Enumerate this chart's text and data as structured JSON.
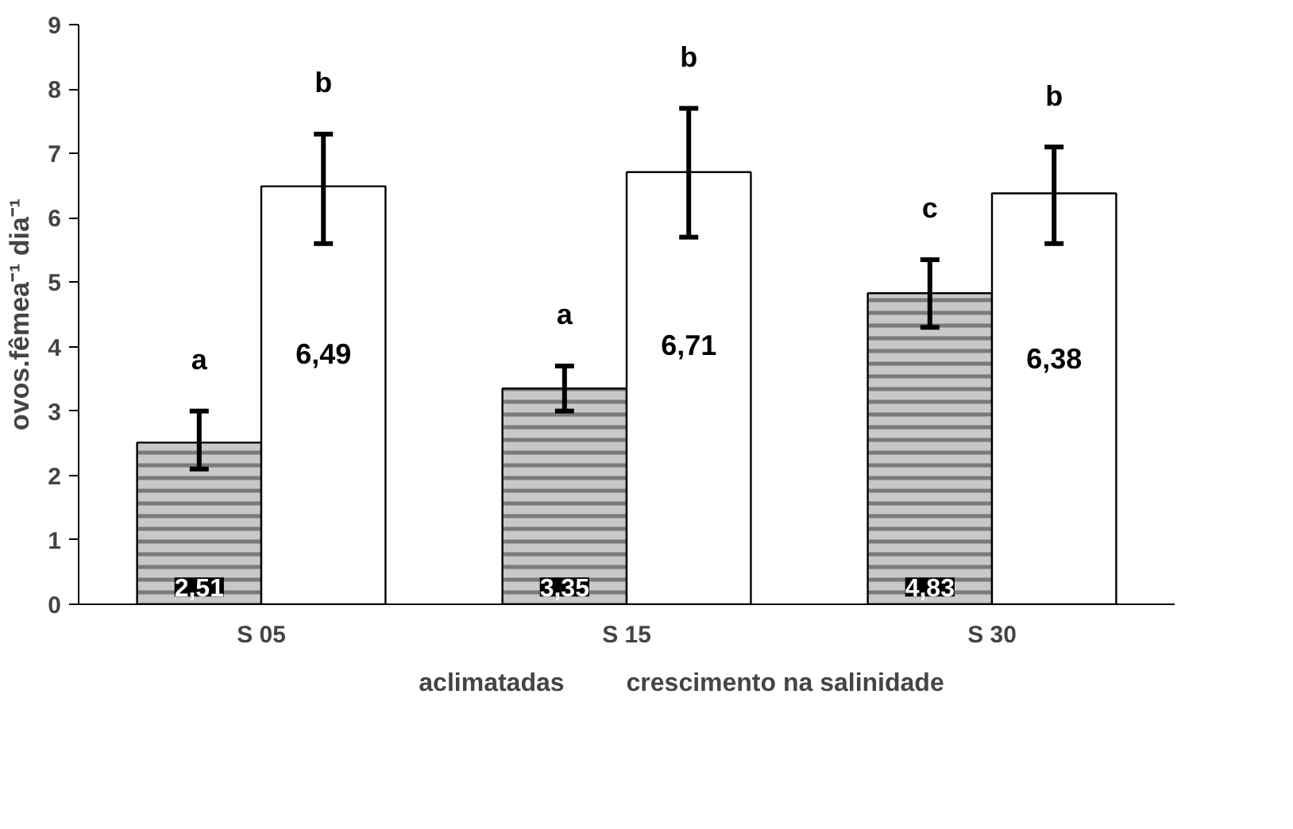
{
  "chart_data": {
    "type": "bar",
    "ylabel": "ovos.fêmea⁻¹ dia⁻¹",
    "categories": [
      "S 05",
      "S 15",
      "S 30"
    ],
    "series": [
      {
        "name": "aclimatadas",
        "color": "#c8c8c8",
        "values": [
          2.51,
          3.35,
          4.83
        ],
        "value_labels": [
          "2,51",
          "3,35",
          "4,83"
        ],
        "errors": [
          [
            2.1,
            3.0
          ],
          [
            3.0,
            3.7
          ],
          [
            4.3,
            5.35
          ]
        ]
      },
      {
        "name": "crescimento na salinidade",
        "color": "#ffffff",
        "values": [
          6.49,
          6.71,
          6.38
        ],
        "value_labels": [
          "6,49",
          "6,71",
          "6,38"
        ],
        "errors": [
          [
            5.6,
            7.3
          ],
          [
            5.7,
            7.7
          ],
          [
            5.6,
            7.1
          ]
        ]
      }
    ],
    "annotations": [
      "a",
      "b",
      "a",
      "b",
      "c",
      "b"
    ],
    "ylim": [
      0,
      9
    ],
    "yticks": [
      0,
      1,
      2,
      3,
      4,
      5,
      6,
      7,
      8,
      9
    ],
    "grid": false,
    "legend": "bottom"
  }
}
